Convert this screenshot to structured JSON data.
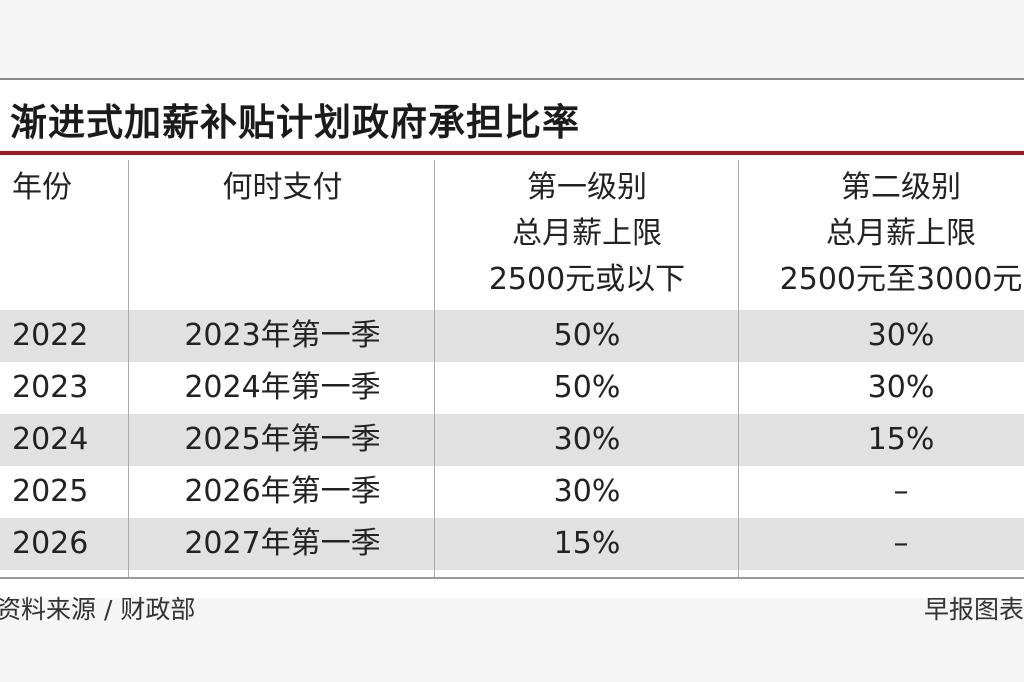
{
  "colors": {
    "title_rule": "#a8101c",
    "row_shade": "#e1e1e1",
    "background": "#ffffff"
  },
  "chart_data": {
    "type": "table",
    "title": "渐进式加薪补贴计划政府承担比率",
    "columns": [
      {
        "lines": [
          "年份"
        ]
      },
      {
        "lines": [
          "何时支付"
        ]
      },
      {
        "lines": [
          "第一级别",
          "总月薪上限",
          "2500元或以下"
        ]
      },
      {
        "lines": [
          "第二级别",
          "总月薪上限",
          "2500元至3000元"
        ]
      }
    ],
    "rows": [
      {
        "year": "2022",
        "when": "2023年第一季",
        "tier1": "50%",
        "tier2": "30%"
      },
      {
        "year": "2023",
        "when": "2024年第一季",
        "tier1": "50%",
        "tier2": "30%"
      },
      {
        "year": "2024",
        "when": "2025年第一季",
        "tier1": "30%",
        "tier2": "15%"
      },
      {
        "year": "2025",
        "when": "2026年第一季",
        "tier1": "30%",
        "tier2": "–"
      },
      {
        "year": "2026",
        "when": "2027年第一季",
        "tier1": "15%",
        "tier2": "–"
      }
    ],
    "source": "资料来源 / 财政部",
    "credit": "早报图表"
  }
}
